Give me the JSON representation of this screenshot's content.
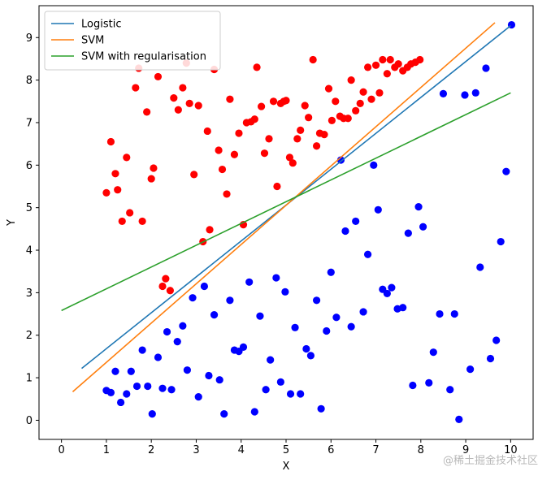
{
  "chart_data": {
    "type": "scatter",
    "title": "",
    "xlabel": "X",
    "ylabel": "Y",
    "xlim": [
      -0.5,
      10.5
    ],
    "ylim": [
      -0.45,
      9.75
    ],
    "x_ticks": [
      0,
      1,
      2,
      3,
      4,
      5,
      6,
      7,
      8,
      9,
      10
    ],
    "y_ticks": [
      0,
      1,
      2,
      3,
      4,
      5,
      6,
      7,
      8,
      9
    ],
    "grid": false,
    "legend_position": "top-left",
    "watermark": "@稀土掘金技术社区",
    "scatter_series": [
      {
        "color": "#ff0000",
        "points": [
          [
            1.0,
            5.35
          ],
          [
            1.1,
            6.55
          ],
          [
            1.2,
            5.8
          ],
          [
            1.25,
            5.42
          ],
          [
            1.35,
            4.68
          ],
          [
            1.45,
            6.18
          ],
          [
            1.52,
            4.88
          ],
          [
            1.65,
            7.82
          ],
          [
            1.72,
            8.28
          ],
          [
            1.8,
            4.68
          ],
          [
            1.9,
            7.25
          ],
          [
            2.0,
            5.68
          ],
          [
            2.05,
            5.93
          ],
          [
            2.15,
            8.08
          ],
          [
            2.25,
            3.15
          ],
          [
            2.32,
            3.33
          ],
          [
            2.42,
            3.05
          ],
          [
            2.5,
            7.58
          ],
          [
            2.6,
            7.3
          ],
          [
            2.7,
            7.82
          ],
          [
            2.78,
            8.4
          ],
          [
            2.85,
            7.45
          ],
          [
            2.95,
            5.78
          ],
          [
            3.05,
            7.4
          ],
          [
            3.15,
            4.2
          ],
          [
            3.25,
            6.8
          ],
          [
            3.3,
            4.48
          ],
          [
            3.4,
            8.25
          ],
          [
            3.5,
            6.35
          ],
          [
            3.58,
            5.9
          ],
          [
            3.68,
            5.32
          ],
          [
            3.75,
            7.55
          ],
          [
            3.85,
            6.25
          ],
          [
            3.95,
            6.75
          ],
          [
            4.05,
            4.6
          ],
          [
            4.12,
            7.0
          ],
          [
            4.22,
            7.02
          ],
          [
            4.3,
            7.08
          ],
          [
            4.35,
            8.3
          ],
          [
            4.45,
            7.38
          ],
          [
            4.52,
            6.28
          ],
          [
            4.62,
            6.62
          ],
          [
            4.72,
            7.5
          ],
          [
            4.8,
            5.5
          ],
          [
            4.88,
            7.45
          ],
          [
            4.95,
            7.5
          ],
          [
            5.0,
            7.52
          ],
          [
            5.08,
            6.18
          ],
          [
            5.15,
            6.05
          ],
          [
            5.25,
            6.62
          ],
          [
            5.32,
            6.82
          ],
          [
            5.42,
            7.4
          ],
          [
            5.5,
            7.12
          ],
          [
            5.6,
            8.48
          ],
          [
            5.68,
            6.45
          ],
          [
            5.75,
            6.75
          ],
          [
            5.85,
            6.72
          ],
          [
            5.95,
            7.8
          ],
          [
            6.02,
            7.05
          ],
          [
            6.1,
            7.5
          ],
          [
            6.2,
            7.15
          ],
          [
            6.28,
            7.1
          ],
          [
            6.38,
            7.1
          ],
          [
            6.45,
            8.0
          ],
          [
            6.55,
            7.28
          ],
          [
            6.65,
            7.45
          ],
          [
            6.72,
            7.72
          ],
          [
            6.82,
            8.3
          ],
          [
            6.9,
            7.55
          ],
          [
            7.0,
            8.35
          ],
          [
            7.08,
            7.7
          ],
          [
            7.15,
            8.48
          ],
          [
            7.25,
            8.15
          ],
          [
            7.32,
            8.48
          ],
          [
            7.42,
            8.3
          ],
          [
            7.5,
            8.38
          ],
          [
            7.6,
            8.22
          ],
          [
            7.7,
            8.3
          ],
          [
            7.78,
            8.38
          ],
          [
            7.88,
            8.42
          ],
          [
            7.98,
            8.48
          ]
        ]
      },
      {
        "color": "#0000ff",
        "points": [
          [
            1.0,
            0.7
          ],
          [
            1.1,
            0.65
          ],
          [
            1.2,
            1.15
          ],
          [
            1.32,
            0.42
          ],
          [
            1.45,
            0.62
          ],
          [
            1.55,
            1.15
          ],
          [
            1.68,
            0.8
          ],
          [
            1.8,
            1.65
          ],
          [
            1.92,
            0.8
          ],
          [
            2.02,
            0.15
          ],
          [
            2.15,
            1.48
          ],
          [
            2.25,
            0.75
          ],
          [
            2.35,
            2.08
          ],
          [
            2.45,
            0.72
          ],
          [
            2.58,
            1.85
          ],
          [
            2.7,
            2.22
          ],
          [
            2.8,
            1.18
          ],
          [
            2.92,
            2.88
          ],
          [
            3.05,
            0.55
          ],
          [
            3.18,
            3.15
          ],
          [
            3.28,
            1.05
          ],
          [
            3.4,
            2.48
          ],
          [
            3.52,
            0.95
          ],
          [
            3.62,
            0.15
          ],
          [
            3.75,
            2.82
          ],
          [
            3.85,
            1.65
          ],
          [
            3.95,
            1.62
          ],
          [
            4.05,
            1.72
          ],
          [
            4.18,
            3.25
          ],
          [
            4.3,
            0.2
          ],
          [
            4.42,
            2.45
          ],
          [
            4.55,
            0.72
          ],
          [
            4.65,
            1.42
          ],
          [
            4.78,
            3.35
          ],
          [
            4.88,
            0.9
          ],
          [
            4.98,
            3.02
          ],
          [
            5.1,
            0.62
          ],
          [
            5.2,
            2.18
          ],
          [
            5.32,
            0.62
          ],
          [
            5.45,
            1.68
          ],
          [
            5.55,
            1.52
          ],
          [
            5.68,
            2.82
          ],
          [
            5.78,
            0.27
          ],
          [
            5.9,
            2.1
          ],
          [
            6.0,
            3.48
          ],
          [
            6.12,
            2.42
          ],
          [
            6.22,
            6.12
          ],
          [
            6.32,
            4.45
          ],
          [
            6.45,
            2.2
          ],
          [
            6.55,
            4.68
          ],
          [
            6.72,
            2.55
          ],
          [
            6.82,
            3.9
          ],
          [
            6.95,
            6.0
          ],
          [
            7.05,
            4.95
          ],
          [
            7.15,
            3.08
          ],
          [
            7.25,
            2.98
          ],
          [
            7.35,
            3.12
          ],
          [
            7.48,
            2.62
          ],
          [
            7.6,
            2.65
          ],
          [
            7.72,
            4.4
          ],
          [
            7.82,
            0.82
          ],
          [
            7.95,
            5.02
          ],
          [
            8.05,
            4.55
          ],
          [
            8.18,
            0.88
          ],
          [
            8.28,
            1.6
          ],
          [
            8.42,
            2.5
          ],
          [
            8.5,
            7.68
          ],
          [
            8.65,
            0.72
          ],
          [
            8.75,
            2.5
          ],
          [
            8.85,
            0.02
          ],
          [
            8.98,
            7.65
          ],
          [
            9.1,
            1.2
          ],
          [
            9.22,
            7.7
          ],
          [
            9.32,
            3.6
          ],
          [
            9.45,
            8.28
          ],
          [
            9.55,
            1.45
          ],
          [
            9.68,
            1.88
          ],
          [
            9.78,
            4.2
          ],
          [
            9.9,
            5.85
          ],
          [
            10.02,
            9.3
          ]
        ]
      }
    ],
    "series": [
      {
        "name": "Logistic",
        "color": "#1f77b4",
        "x": [
          0.45,
          10.0
        ],
        "y": [
          1.22,
          9.28
        ]
      },
      {
        "name": "SVM",
        "color": "#ff7f0e",
        "x": [
          0.25,
          9.65
        ],
        "y": [
          0.67,
          9.35
        ]
      },
      {
        "name": "SVM with regularisation",
        "color": "#2ca02c",
        "x": [
          0.0,
          10.0
        ],
        "y": [
          2.58,
          7.7
        ]
      }
    ]
  }
}
